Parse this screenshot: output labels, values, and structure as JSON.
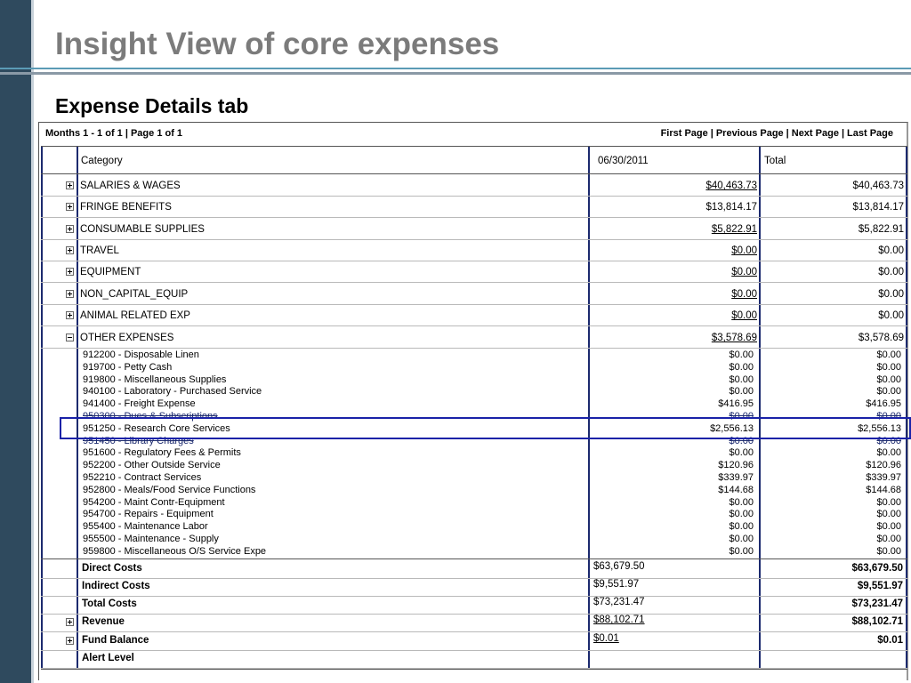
{
  "slide": {
    "title": "Insight View of core expenses",
    "subtitle": "Expense Details tab"
  },
  "pager": {
    "summary": "Months 1 - 1 of 1 | Page 1 of 1",
    "first": "First Page",
    "previous": "Previous Page",
    "next": "Next Page",
    "last": "Last Page"
  },
  "table": {
    "headers": {
      "category": "Category",
      "period": "06/30/2011",
      "total": "Total"
    },
    "categories": [
      {
        "name": "SALARIES & WAGES",
        "period": "$40,463.73",
        "total": "$40,463.73",
        "icon": "expand-icon"
      },
      {
        "name": "FRINGE BENEFITS",
        "period": "$13,814.17",
        "total": "$13,814.17",
        "icon": "expand-icon"
      },
      {
        "name": "CONSUMABLE SUPPLIES",
        "period": "$5,822.91",
        "total": "$5,822.91",
        "icon": "expand-icon"
      },
      {
        "name": "TRAVEL",
        "period": "$0.00",
        "total": "$0.00",
        "icon": "expand-icon"
      },
      {
        "name": "EQUIPMENT",
        "period": "$0.00",
        "total": "$0.00",
        "icon": "expand-icon"
      },
      {
        "name": "NON_CAPITAL_EQUIP",
        "period": "$0.00",
        "total": "$0.00",
        "icon": "expand-icon"
      },
      {
        "name": "ANIMAL RELATED EXP",
        "period": "$0.00",
        "total": "$0.00",
        "icon": "expand-icon"
      },
      {
        "name": "OTHER EXPENSES",
        "period": "$3,578.69",
        "total": "$3,578.69",
        "icon": "collapse-icon"
      }
    ],
    "other_expense_details": [
      {
        "account": "912200 - Disposable Linen",
        "period": "$0.00",
        "total": "$0.00"
      },
      {
        "account": "919700 - Petty Cash",
        "period": "$0.00",
        "total": "$0.00"
      },
      {
        "account": "919800 - Miscellaneous Supplies",
        "period": "$0.00",
        "total": "$0.00"
      },
      {
        "account": "940100 - Laboratory - Purchased Service",
        "period": "$0.00",
        "total": "$0.00"
      },
      {
        "account": "941400 - Freight Expense",
        "period": "$416.95",
        "total": "$416.95"
      },
      {
        "account": "950300 - Dues & Subscriptions",
        "period": "$0.00",
        "total": "$0.00"
      },
      {
        "account": "951250 - Research Core Services",
        "period": "$2,556.13",
        "total": "$2,556.13"
      },
      {
        "account": "951450 - Library Charges",
        "period": "$0.00",
        "total": "$0.00"
      },
      {
        "account": "951600 - Regulatory Fees & Permits",
        "period": "$0.00",
        "total": "$0.00"
      },
      {
        "account": "952200 - Other Outside Service",
        "period": "$120.96",
        "total": "$120.96"
      },
      {
        "account": "952210 - Contract Services",
        "period": "$339.97",
        "total": "$339.97"
      },
      {
        "account": "952800 - Meals/Food Service Functions",
        "period": "$144.68",
        "total": "$144.68"
      },
      {
        "account": "954200 - Maint Contr-Equipment",
        "period": "$0.00",
        "total": "$0.00"
      },
      {
        "account": "954700 - Repairs - Equipment",
        "period": "$0.00",
        "total": "$0.00"
      },
      {
        "account": "955400 - Maintenance Labor",
        "period": "$0.00",
        "total": "$0.00"
      },
      {
        "account": "955500 - Maintenance - Supply",
        "period": "$0.00",
        "total": "$0.00"
      },
      {
        "account": "959800 - Miscellaneous O/S Service Expe",
        "period": "$0.00",
        "total": "$0.00"
      }
    ],
    "summary_rows": [
      {
        "label": "Direct Costs",
        "period": "$63,679.50",
        "total": "$63,679.50"
      },
      {
        "label": "Indirect Costs",
        "period": "$9,551.97",
        "total": "$9,551.97"
      },
      {
        "label": "Total Costs",
        "period": "$73,231.47",
        "total": "$73,231.47"
      },
      {
        "label": "Revenue",
        "period": "$88,102.71",
        "total": "$88,102.71",
        "icon": "expand-icon"
      },
      {
        "label": "Fund Balance",
        "period": "$0.01",
        "total": "$0.01",
        "icon": "expand-icon"
      },
      {
        "label": "Alert Level",
        "period": "",
        "total": ""
      }
    ]
  },
  "colors": {
    "grid_line": "#1c2a6e",
    "highlight": "#1a22a8",
    "title": "#7b7b7b",
    "side_bar": "#2f4a5e"
  }
}
